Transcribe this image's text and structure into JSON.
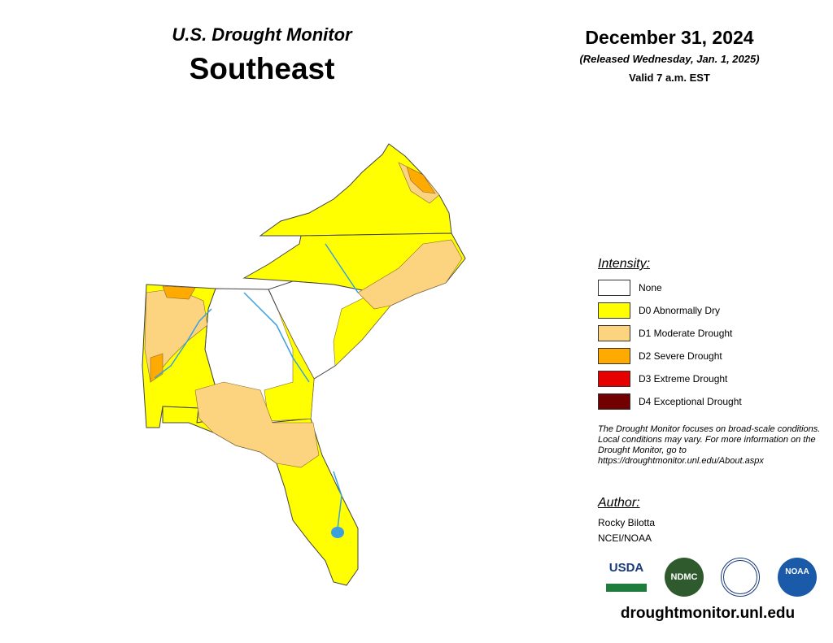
{
  "header": {
    "title": "U.S. Drought Monitor",
    "region": "Southeast",
    "date": "December 31, 2024",
    "released": "(Released Wednesday, Jan. 1, 2025)",
    "valid": "Valid 7 a.m. EST"
  },
  "legend": {
    "title": "Intensity:",
    "items": [
      {
        "label": "None",
        "color": "#ffffff"
      },
      {
        "label": "D0 Abnormally Dry",
        "color": "#ffff00"
      },
      {
        "label": "D1 Moderate Drought",
        "color": "#fcd37f"
      },
      {
        "label": "D2 Severe Drought",
        "color": "#ffaa00"
      },
      {
        "label": "D3 Extreme Drought",
        "color": "#e60000"
      },
      {
        "label": "D4 Exceptional Drought",
        "color": "#730000"
      }
    ]
  },
  "note": "The Drought Monitor focuses on broad-scale conditions. Local conditions may vary. For more information on the Drought Monitor, go to https://droughtmonitor.unl.edu/About.aspx",
  "author": {
    "title": "Author:",
    "name": "Rocky Bilotta",
    "org": "NCEI/NOAA"
  },
  "logos": [
    "USDA",
    "NDMC",
    "NOAA"
  ],
  "footer": "droughtmonitor.unl.edu"
}
